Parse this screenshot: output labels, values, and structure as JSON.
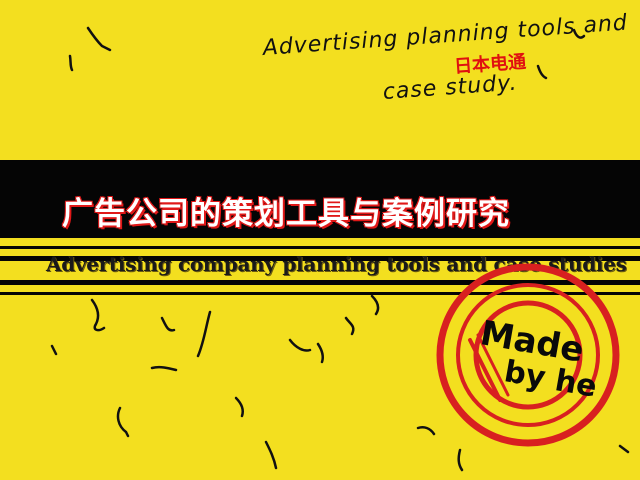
{
  "background_color": "#f3df1f",
  "handwritten_note": {
    "line1": "Advertising planning tools and",
    "line2": "case study.",
    "red_note": "日本电通"
  },
  "title_cn": "广告公司的策划工具与案例研究",
  "title_en": "Advertising company planning tools and case studies",
  "stamp": {
    "line1": "Made",
    "line2": "by he",
    "ring_color": "#d82020"
  },
  "accent_color": "#e01818"
}
